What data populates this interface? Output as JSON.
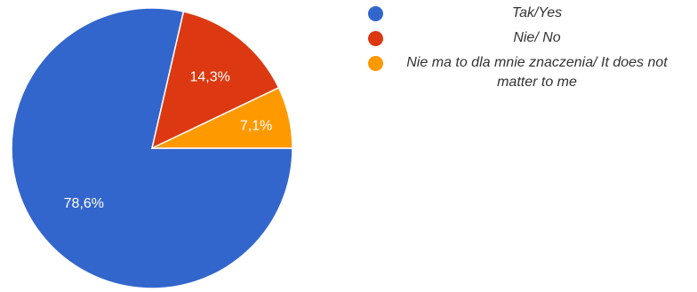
{
  "colors": {
    "yes": "#3366cc",
    "no": "#dc3912",
    "neutral": "#ff9900"
  },
  "chart_data": {
    "type": "pie",
    "categories": [
      "Tak/Yes",
      "Nie/ No",
      "Nie ma to dla mnie znaczenia/ It does not matter to me"
    ],
    "values": [
      78.6,
      14.3,
      7.1
    ],
    "labels": [
      "78,6%",
      "14,3%",
      "7,1%"
    ],
    "legend_position": "right"
  },
  "legend": {
    "items": [
      {
        "label": "Tak/Yes"
      },
      {
        "label": "Nie/ No"
      },
      {
        "label": "Nie ma to dla mnie znaczenia/ It does not matter to me"
      }
    ]
  }
}
